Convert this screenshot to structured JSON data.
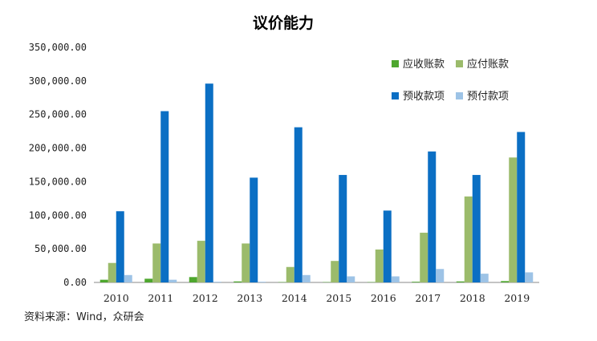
{
  "chart_data": {
    "type": "bar",
    "title": "议价能力",
    "categories": [
      "2010",
      "2011",
      "2012",
      "2013",
      "2014",
      "2015",
      "2016",
      "2017",
      "2018",
      "2019"
    ],
    "ylim": [
      0,
      350000
    ],
    "y_ticks": [
      0,
      50000,
      100000,
      150000,
      200000,
      250000,
      300000,
      350000
    ],
    "y_tick_labels": [
      "0.00",
      "50,000.00",
      "100,000.00",
      "150,000.00",
      "200,000.00",
      "250,000.00",
      "300,000.00",
      "350,000.00"
    ],
    "grid": false,
    "legend_position": "top-right",
    "series": [
      {
        "name": "应收账款",
        "color": "#4ea72e",
        "values": [
          4000,
          5500,
          8000,
          1500,
          500,
          500,
          500,
          1000,
          1500,
          2000
        ]
      },
      {
        "name": "应付账款",
        "color": "#9bbb6b",
        "values": [
          29000,
          58000,
          62000,
          58000,
          23000,
          32000,
          49000,
          74000,
          128000,
          186000
        ]
      },
      {
        "name": "预收款项",
        "color": "#0b6fc4",
        "values": [
          106000,
          255000,
          296000,
          156000,
          231000,
          160000,
          107000,
          195000,
          160000,
          224000
        ]
      },
      {
        "name": "预付款项",
        "color": "#9dc3e6",
        "values": [
          11000,
          4000,
          1000,
          1000,
          11000,
          9000,
          9000,
          20000,
          13000,
          15000
        ]
      }
    ]
  },
  "source": "资料来源：Wind，众研会"
}
